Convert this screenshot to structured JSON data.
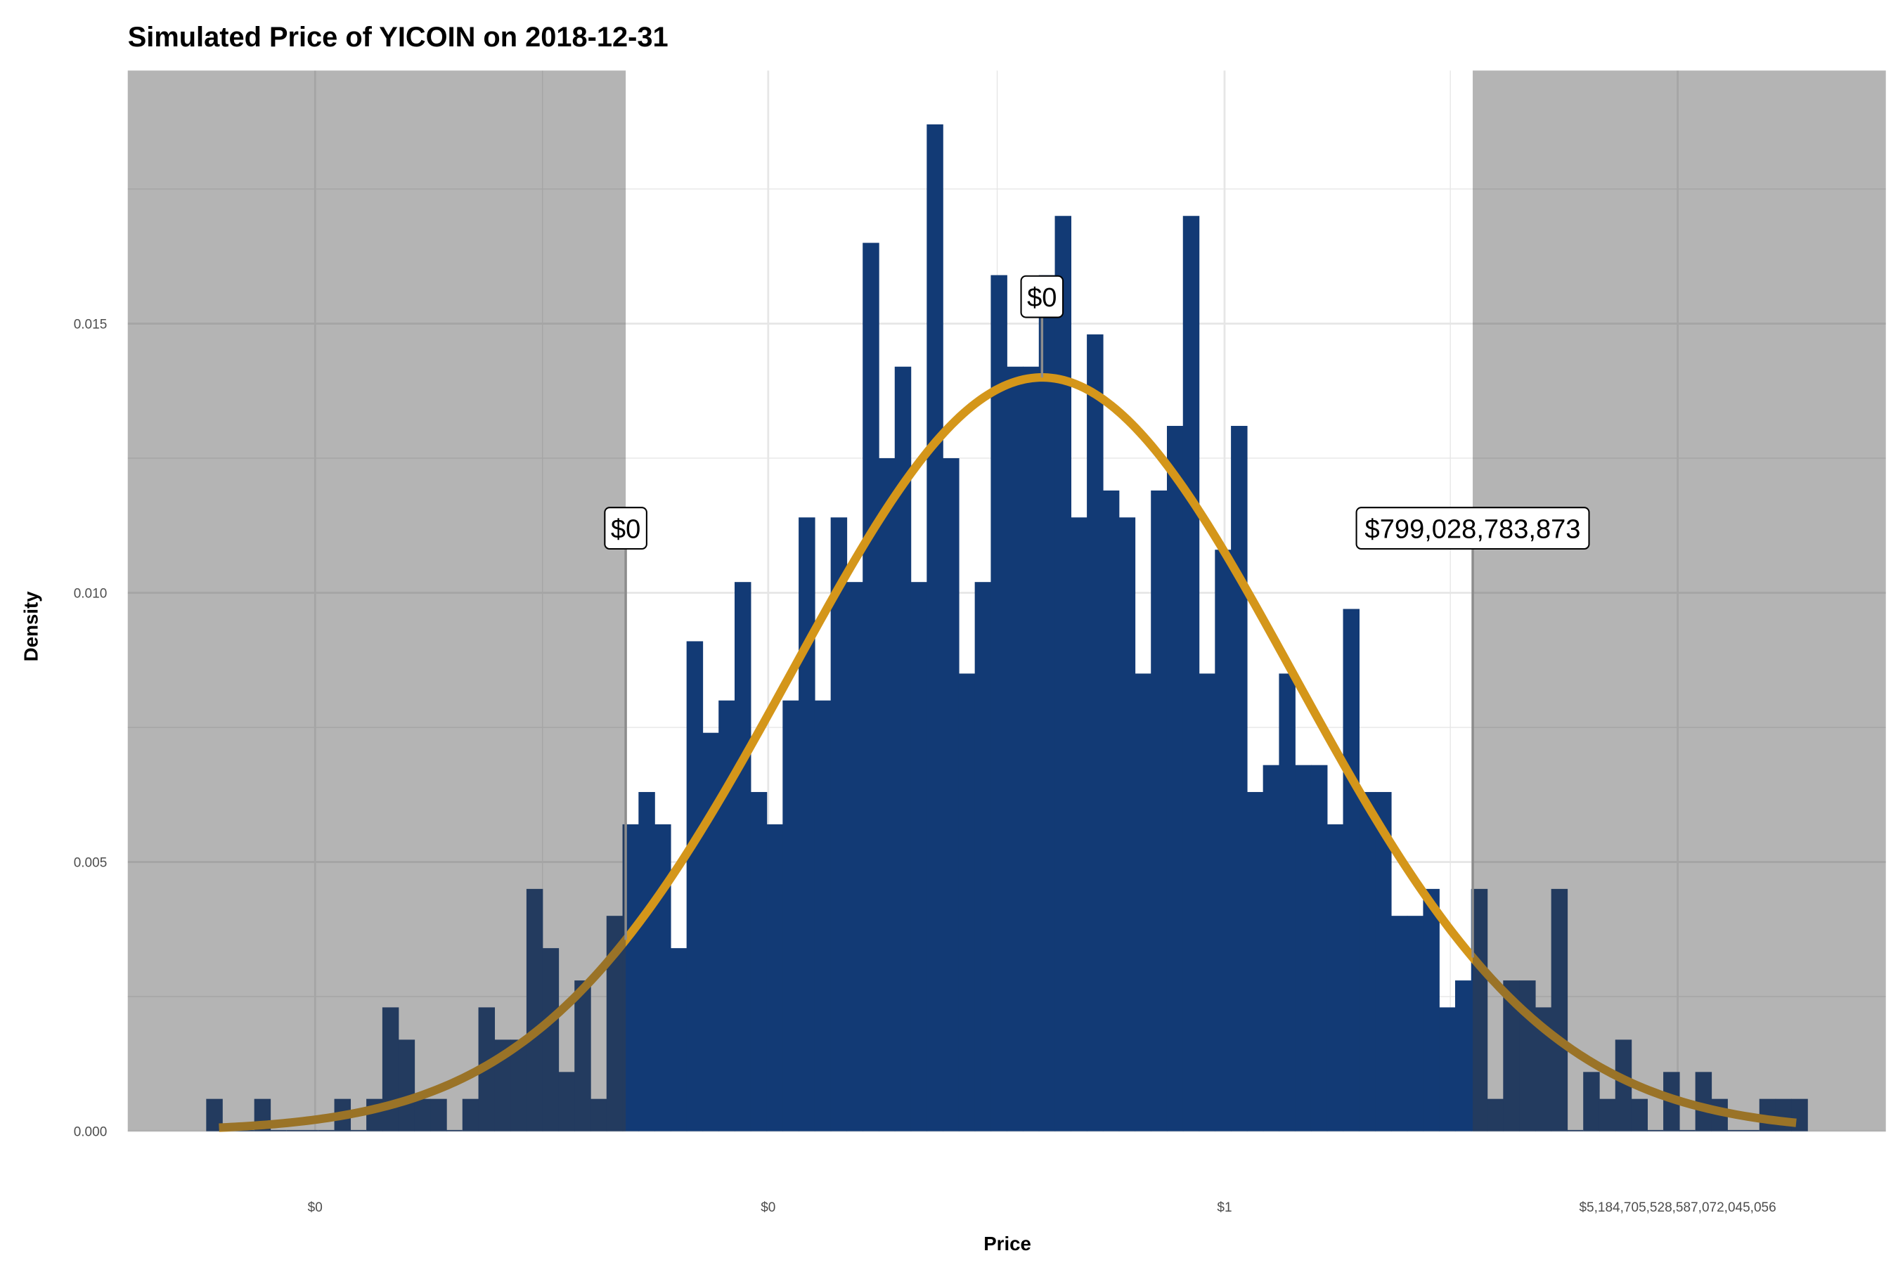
{
  "chart_data": {
    "type": "bar",
    "title": "Simulated Price of YICOIN on 2018-12-31",
    "xlabel": "Price",
    "ylabel": "Density",
    "ylim": [
      0,
      0.0197
    ],
    "xlim_bins": [
      -4.9,
      104.9
    ],
    "grid": true,
    "y_ticks": [
      {
        "value": 0,
        "label": "0.000"
      },
      {
        "value": 0.005,
        "label": "0.005"
      },
      {
        "value": 0.01,
        "label": "0.010"
      },
      {
        "value": 0.015,
        "label": "0.015"
      }
    ],
    "x_ticks": [
      {
        "bin": 6.8,
        "label": "$0"
      },
      {
        "bin": 35.1,
        "label": "$0"
      },
      {
        "bin": 63.6,
        "label": "$1"
      },
      {
        "bin": 91.9,
        "label": "$5,184,705,528,587,072,045,056"
      }
    ],
    "x_minor_bins": [
      21.0,
      49.4,
      77.7
    ],
    "histogram_density": [
      0.0006,
      0,
      0,
      0.0006,
      0,
      0,
      0,
      0,
      0.0006,
      0,
      0.0006,
      0.0023,
      0.0017,
      0.0006,
      0.0006,
      0,
      0.0006,
      0.0023,
      0.0017,
      0.0017,
      0.0045,
      0.0034,
      0.0011,
      0.0028,
      0.0006,
      0.004,
      0.0057,
      0.0063,
      0.0057,
      0.0034,
      0.0091,
      0.0074,
      0.008,
      0.0102,
      0.0063,
      0.0057,
      0.008,
      0.0114,
      0.008,
      0.0114,
      0.0102,
      0.0165,
      0.0125,
      0.0142,
      0.0102,
      0.0187,
      0.0125,
      0.0085,
      0.0102,
      0.0159,
      0.0142,
      0.0142,
      0.0159,
      0.017,
      0.0114,
      0.0148,
      0.0119,
      0.0114,
      0.0085,
      0.0119,
      0.0131,
      0.017,
      0.0085,
      0.0108,
      0.0131,
      0.0063,
      0.0068,
      0.0085,
      0.0068,
      0.0068,
      0.0057,
      0.0097,
      0.0063,
      0.0063,
      0.004,
      0.004,
      0.0045,
      0.0023,
      0.0028,
      0.0045,
      0.0006,
      0.0028,
      0.0028,
      0.0023,
      0.0045,
      0,
      0.0011,
      0.0006,
      0.0017,
      0.0006,
      0,
      0.0011,
      0,
      0.0011,
      0.0006,
      0,
      0,
      0.0006,
      0.0006,
      0.0006
    ],
    "normal_fit": {
      "mean_bin": 52.2,
      "sd_bins": 15.7,
      "peak_density": 0.014
    },
    "shaded_regions": [
      {
        "from": "left-edge",
        "to_bin": 26.2
      },
      {
        "from_bin": 79.1,
        "to": "right-edge"
      }
    ],
    "annotations": [
      {
        "bin": 26.2,
        "density": 0.0112,
        "label": "$0"
      },
      {
        "bin": 52.2,
        "density": 0.0155,
        "label": "$0"
      },
      {
        "bin": 79.1,
        "density": 0.0112,
        "label": "$799,028,783,873"
      }
    ],
    "colors": {
      "bar": "#123a75",
      "curve": "#d4961a",
      "shade": "#3e3e3e",
      "grid": "#e6e6e6"
    }
  }
}
